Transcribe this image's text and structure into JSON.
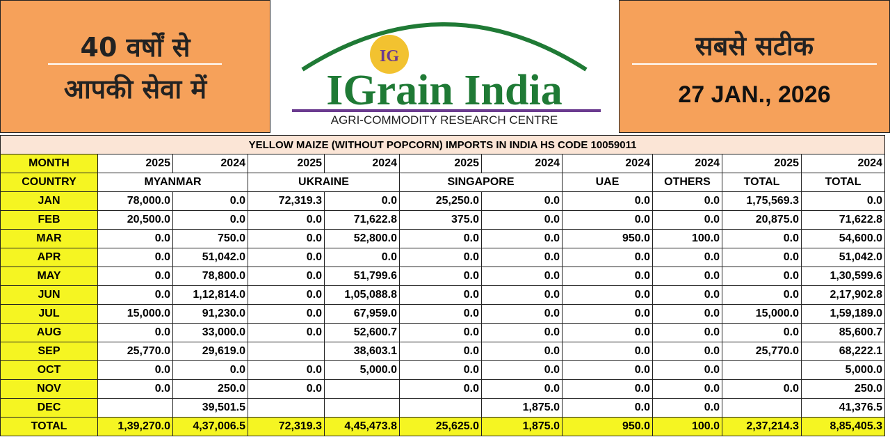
{
  "header": {
    "left_line1": "40 वर्षों से",
    "left_line2": "आपकी सेवा में",
    "logo_badge": "IG",
    "logo_title": "IGrain India",
    "logo_subtitle": "AGRI-COMMODITY RESEARCH CENTRE",
    "right_line1": "सबसे सटीक",
    "date": "27 JAN., 2026"
  },
  "table": {
    "title": "YELLOW MAIZE (WITHOUT POPCORN) IMPORTS IN INDIA HS CODE 10059011",
    "year_row": [
      "MONTH",
      "2025",
      "2024",
      "2025",
      "2024",
      "2025",
      "2024",
      "2024",
      "2024",
      "2025",
      "2024"
    ],
    "country_row": [
      "COUNTRY",
      "MYANMAR",
      "UKRAINE",
      "SINGAPORE",
      "UAE",
      "OTHERS",
      "TOTAL",
      "TOTAL"
    ],
    "rows": [
      {
        "month": "JAN",
        "values": [
          "78,000.0",
          "0.0",
          "72,319.3",
          "0.0",
          "25,250.0",
          "0.0",
          "0.0",
          "0.0",
          "1,75,569.3",
          "0.0"
        ]
      },
      {
        "month": "FEB",
        "values": [
          "20,500.0",
          "0.0",
          "0.0",
          "71,622.8",
          "375.0",
          "0.0",
          "0.0",
          "0.0",
          "20,875.0",
          "71,622.8"
        ]
      },
      {
        "month": "MAR",
        "values": [
          "0.0",
          "750.0",
          "0.0",
          "52,800.0",
          "0.0",
          "0.0",
          "950.0",
          "100.0",
          "0.0",
          "54,600.0"
        ]
      },
      {
        "month": "APR",
        "values": [
          "0.0",
          "51,042.0",
          "0.0",
          "0.0",
          "0.0",
          "0.0",
          "0.0",
          "0.0",
          "0.0",
          "51,042.0"
        ]
      },
      {
        "month": "MAY",
        "values": [
          "0.0",
          "78,800.0",
          "0.0",
          "51,799.6",
          "0.0",
          "0.0",
          "0.0",
          "0.0",
          "0.0",
          "1,30,599.6"
        ]
      },
      {
        "month": "JUN",
        "values": [
          "0.0",
          "1,12,814.0",
          "0.0",
          "1,05,088.8",
          "0.0",
          "0.0",
          "0.0",
          "0.0",
          "0.0",
          "2,17,902.8"
        ]
      },
      {
        "month": "JUL",
        "values": [
          "15,000.0",
          "91,230.0",
          "0.0",
          "67,959.0",
          "0.0",
          "0.0",
          "0.0",
          "0.0",
          "15,000.0",
          "1,59,189.0"
        ]
      },
      {
        "month": "AUG",
        "values": [
          "0.0",
          "33,000.0",
          "0.0",
          "52,600.7",
          "0.0",
          "0.0",
          "0.0",
          "0.0",
          "0.0",
          "85,600.7"
        ]
      },
      {
        "month": "SEP",
        "values": [
          "25,770.0",
          "29,619.0",
          null,
          "38,603.1",
          "0.0",
          "0.0",
          "0.0",
          "0.0",
          "25,770.0",
          "68,222.1"
        ]
      },
      {
        "month": "OCT",
        "values": [
          "0.0",
          "0.0",
          "0.0",
          "5,000.0",
          "0.0",
          "0.0",
          "0.0",
          "0.0",
          null,
          "5,000.0"
        ]
      },
      {
        "month": "NOV",
        "values": [
          "0.0",
          "250.0",
          "0.0",
          null,
          "0.0",
          "0.0",
          "0.0",
          "0.0",
          "0.0",
          "250.0"
        ]
      },
      {
        "month": "DEC",
        "values": [
          null,
          "39,501.5",
          null,
          null,
          null,
          "1,875.0",
          "0.0",
          "0.0",
          null,
          "41,376.5"
        ]
      }
    ],
    "total": {
      "month": "TOTAL",
      "values": [
        "1,39,270.0",
        "4,37,006.5",
        "72,319.3",
        "4,45,473.8",
        "25,625.0",
        "1,875.0",
        "950.0",
        "100.0",
        "2,37,214.3",
        "8,85,405.3"
      ]
    }
  }
}
